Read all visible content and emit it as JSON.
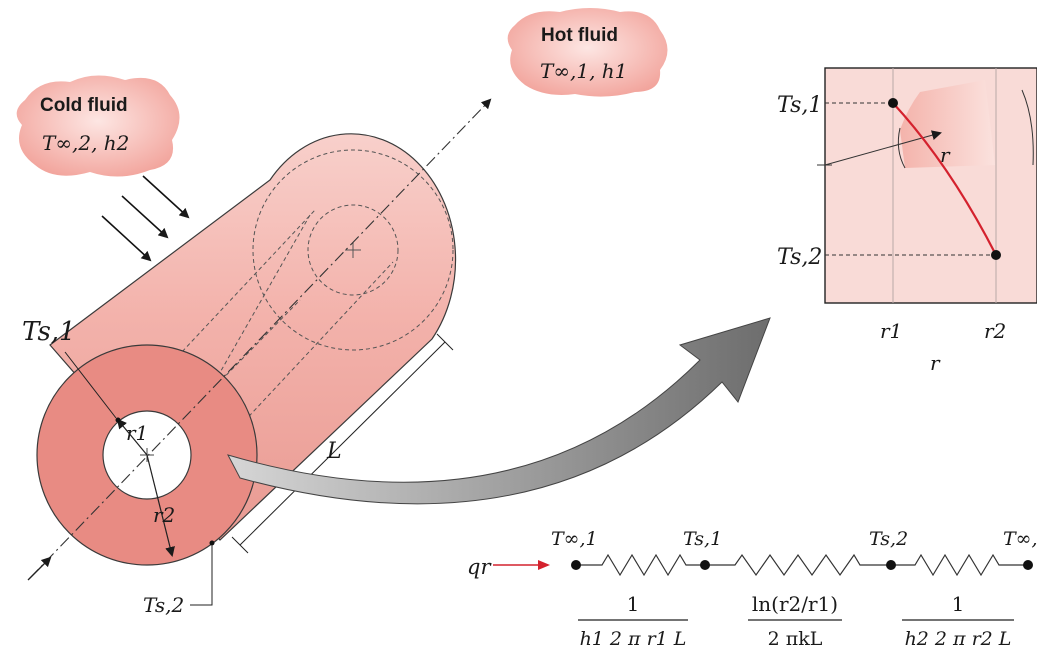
{
  "cold_fluid": {
    "title": "Cold fluid",
    "params": "T∞,2, h2"
  },
  "hot_fluid": {
    "title": "Hot fluid",
    "params": "T∞,1, h1"
  },
  "cylinder": {
    "ts1": "Ts,1",
    "ts2": "Ts,2",
    "r1": "r1",
    "r2": "r2",
    "length": "L"
  },
  "plot": {
    "ts1_label": "Ts,1",
    "ts2_label": "Ts,2",
    "r1_tick": "r1",
    "r2_tick": "r2",
    "x_label": "r",
    "r_label": "r"
  },
  "circuit": {
    "qr": "qr",
    "nodes": [
      "T∞,1",
      "Ts,1",
      "Ts,2",
      "T∞,"
    ],
    "resistances": [
      {
        "num": "1",
        "den": "h1 2 π r1 L"
      },
      {
        "num": "ln(r2/r1)",
        "den": "2 πkL"
      },
      {
        "num": "1",
        "den": "h2 2 π r2 L"
      }
    ]
  },
  "colors": {
    "pipe_body": "#f4b4ae",
    "pipe_end": "#e8847c",
    "plot_bg": "#f9dbd7",
    "arrow_gray": "#8a8a8a",
    "red_line": "#d4222e"
  }
}
